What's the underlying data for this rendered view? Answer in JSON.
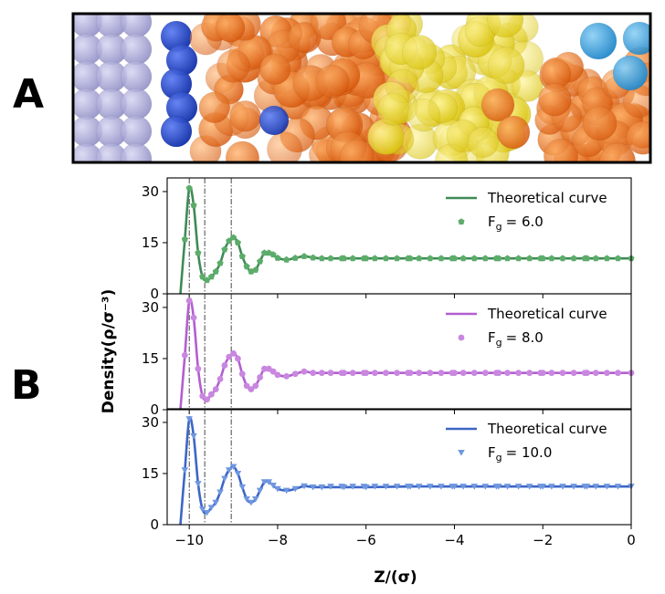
{
  "panels": {
    "a": "A",
    "b": "B"
  },
  "chart_data": {
    "type": "line",
    "xlabel": "Z/(σ)",
    "ylabel": "Density(ρ/σ⁻³)",
    "xlim": [
      -10.5,
      0
    ],
    "ylim": [
      0,
      34
    ],
    "x_ticks": [
      -10,
      -8,
      -6,
      -4,
      -2,
      0
    ],
    "x_tick_labels": [
      "−10",
      "−8",
      "−6",
      "−4",
      "−2",
      "0"
    ],
    "y_ticks": [
      0,
      15,
      30
    ],
    "vlines": [
      -10.0,
      -9.65,
      -9.05
    ],
    "subplots": [
      {
        "color": "#3f8a56",
        "marker_color": "#5cac6a",
        "marker": "pentagon",
        "legend_line": "Theoretical curve",
        "legend_marker_prefix": "F",
        "legend_marker_sub": "g",
        "legend_marker_value": "= 6.0",
        "x": [
          -10.2,
          -10.1,
          -10.0,
          -9.9,
          -9.8,
          -9.7,
          -9.6,
          -9.5,
          -9.4,
          -9.3,
          -9.2,
          -9.1,
          -9.0,
          -8.9,
          -8.8,
          -8.7,
          -8.6,
          -8.5,
          -8.4,
          -8.3,
          -8.2,
          -8.1,
          -8.0,
          -7.8,
          -7.6,
          -7.4,
          -7.2,
          -7.0,
          -6.5,
          -6.0,
          -5.0,
          -4.0,
          -3.0,
          -2.0,
          -1.0,
          0.0
        ],
        "y": [
          0,
          16,
          31,
          26,
          12,
          5,
          4,
          5,
          6.5,
          9,
          13,
          15.5,
          16.5,
          15,
          11,
          8,
          6.5,
          7,
          9.5,
          12,
          12,
          11.5,
          10.5,
          10,
          10.5,
          11,
          10.6,
          10.4,
          10.4,
          10.4,
          10.4,
          10.4,
          10.4,
          10.4,
          10.4,
          10.4
        ]
      },
      {
        "color": "#b25fd0",
        "marker_color": "#c987e0",
        "marker": "circle",
        "legend_line": "Theoretical curve",
        "legend_marker_prefix": "F",
        "legend_marker_sub": "g",
        "legend_marker_value": "= 8.0",
        "x": [
          -10.2,
          -10.1,
          -10.0,
          -9.9,
          -9.8,
          -9.7,
          -9.6,
          -9.5,
          -9.4,
          -9.3,
          -9.2,
          -9.1,
          -9.0,
          -8.9,
          -8.8,
          -8.7,
          -8.6,
          -8.5,
          -8.4,
          -8.3,
          -8.2,
          -8.1,
          -8.0,
          -7.8,
          -7.6,
          -7.4,
          -7.2,
          -7.0,
          -6.5,
          -6.0,
          -5.0,
          -4.0,
          -3.0,
          -2.0,
          -1.0,
          0.0
        ],
        "y": [
          0,
          16,
          32,
          27,
          12,
          4,
          3,
          4.5,
          6,
          9,
          13,
          15.5,
          16.5,
          15,
          10.5,
          7,
          6,
          7,
          9.5,
          12,
          12,
          11.2,
          10.2,
          9.8,
          10.5,
          11.2,
          10.8,
          10.8,
          10.8,
          10.8,
          10.8,
          10.8,
          10.8,
          10.8,
          10.8,
          10.8
        ]
      },
      {
        "color": "#3d66c5",
        "marker_color": "#6f97e0",
        "marker": "triangle-down",
        "legend_line": "Theoretical curve",
        "legend_marker_prefix": "F",
        "legend_marker_sub": "g",
        "legend_marker_value": "= 10.0",
        "x": [
          -10.2,
          -10.1,
          -10.0,
          -9.9,
          -9.8,
          -9.7,
          -9.6,
          -9.5,
          -9.4,
          -9.3,
          -9.2,
          -9.1,
          -9.0,
          -8.9,
          -8.8,
          -8.7,
          -8.6,
          -8.5,
          -8.4,
          -8.3,
          -8.2,
          -8.1,
          -8.0,
          -7.8,
          -7.6,
          -7.4,
          -7.2,
          -7.0,
          -6.5,
          -6.0,
          -5.0,
          -4.0,
          -3.0,
          -2.0,
          -1.0,
          0.0
        ],
        "y": [
          0,
          16,
          31,
          26,
          12,
          4.5,
          3.5,
          5,
          6.5,
          9.5,
          13.5,
          16,
          17,
          15,
          11,
          7.5,
          6.5,
          7.5,
          10,
          12.5,
          12.5,
          11.5,
          10.5,
          10,
          10.5,
          11.3,
          11,
          11,
          11,
          11,
          11.2,
          11.2,
          11.2,
          11.2,
          11.2,
          11.2
        ]
      }
    ]
  }
}
